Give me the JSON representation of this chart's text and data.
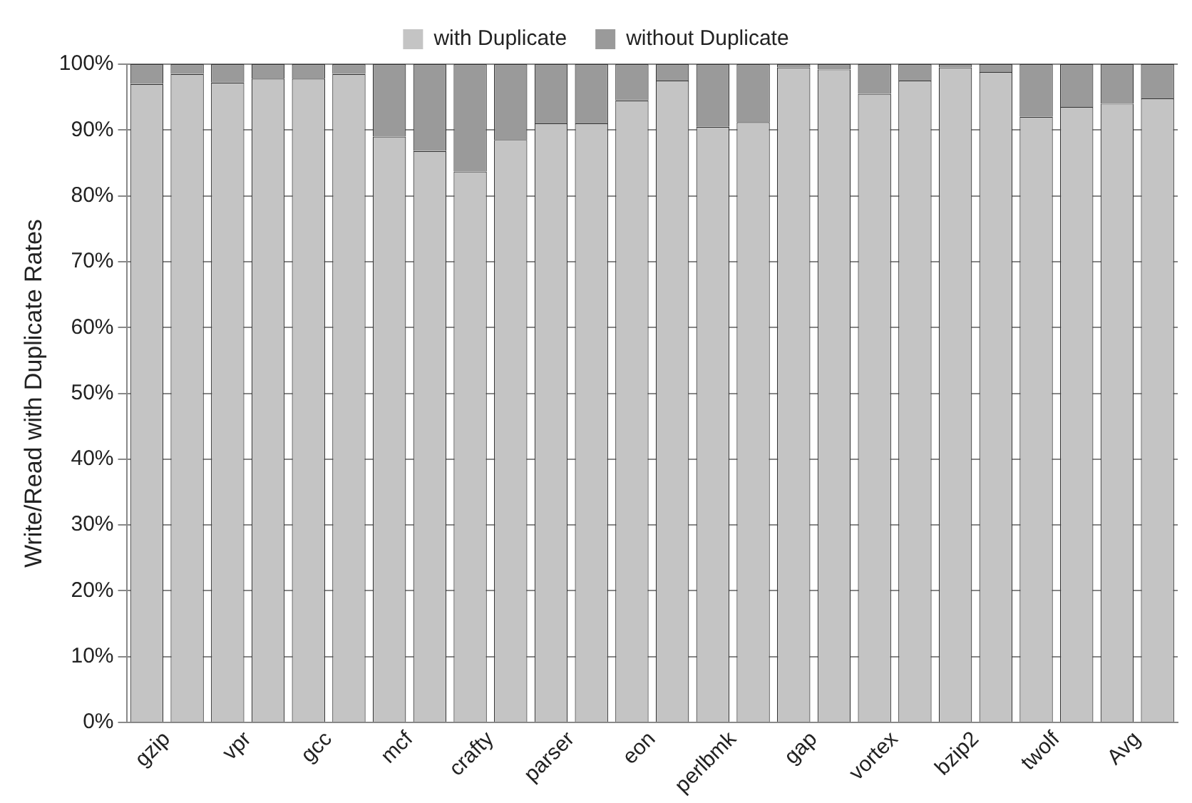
{
  "chart_data": {
    "type": "bar",
    "stacked": true,
    "ylabel": "Write/Read with Duplicate Rates",
    "categories": [
      "gzip",
      null,
      "vpr",
      null,
      "gcc",
      null,
      "mcf",
      null,
      "crafty",
      null,
      "parser",
      null,
      "eon",
      null,
      "perlbmk",
      null,
      "gap",
      null,
      "vortex",
      null,
      "bzip2",
      null,
      "twolf",
      null,
      "Avg",
      null
    ],
    "series": [
      {
        "name": "with Duplicate",
        "color": "#c4c4c4",
        "values": [
          97,
          98.5,
          97.2,
          97.8,
          97.8,
          98.5,
          89,
          86.8,
          83.7,
          88.5,
          91,
          91,
          94.5,
          97.5,
          90.5,
          91.2,
          99.5,
          99.2,
          95.5,
          97.5,
          99.5,
          98.8,
          92,
          93.5,
          94,
          94.8
        ]
      },
      {
        "name": "without Duplicate",
        "color": "#9a9a9a",
        "values": [
          3,
          1.5,
          2.8,
          2.2,
          2.2,
          1.5,
          11,
          13.2,
          16.3,
          11.5,
          9,
          9,
          5.5,
          2.5,
          9.5,
          8.8,
          0.5,
          0.8,
          4.5,
          2.5,
          0.5,
          1.2,
          8,
          6.5,
          6,
          5.2
        ]
      }
    ],
    "ylim": [
      0,
      100
    ],
    "yticks": [
      {
        "value": 0,
        "label": "0%"
      },
      {
        "value": 10,
        "label": "10%"
      },
      {
        "value": 20,
        "label": "20%"
      },
      {
        "value": 30,
        "label": "30%"
      },
      {
        "value": 40,
        "label": "40%"
      },
      {
        "value": 50,
        "label": "50%"
      },
      {
        "value": 60,
        "label": "60%"
      },
      {
        "value": 70,
        "label": "70%"
      },
      {
        "value": 80,
        "label": "80%"
      },
      {
        "value": 90,
        "label": "90%"
      },
      {
        "value": 100,
        "label": "100%"
      }
    ],
    "grid": "y",
    "legend": "top"
  }
}
